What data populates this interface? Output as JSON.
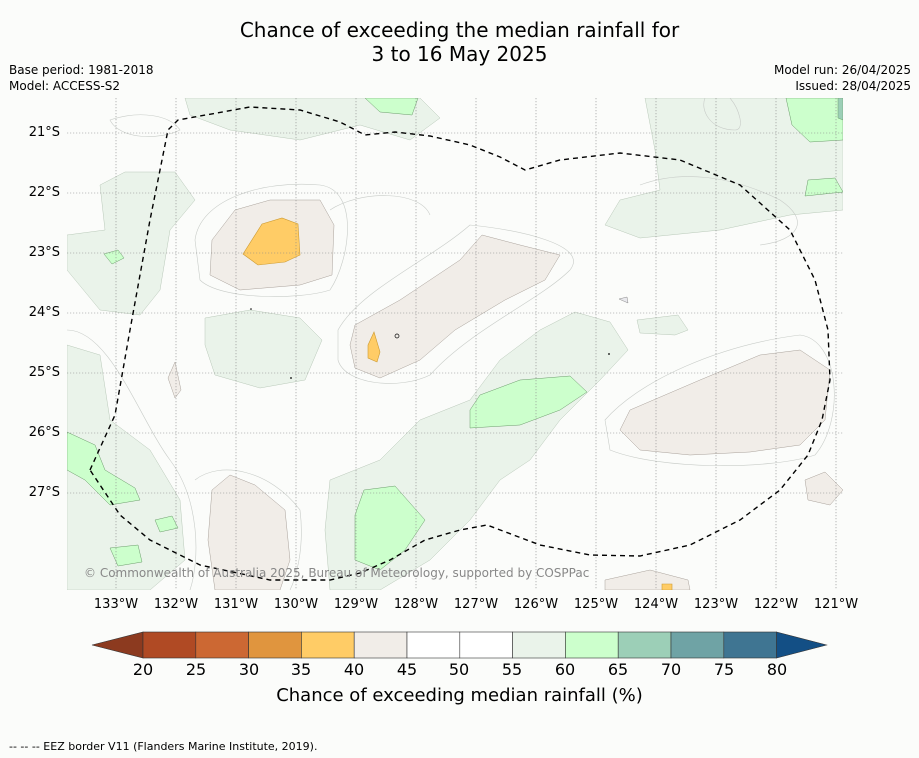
{
  "header": {
    "title_line1": "Chance of exceeding the median rainfall for",
    "title_line2": "3 to 16 May 2025",
    "base_period": "Base period: 1981-2018",
    "model": "Model: ACCESS-S2",
    "model_run": "Model run: 26/04/2025",
    "issued": "Issued: 28/04/2025"
  },
  "map": {
    "copyright": "© Commonwealth of Australia 2025, Bureau of Meteorology, supported by COSPPac",
    "lat_labels": [
      "21°S",
      "22°S",
      "23°S",
      "24°S",
      "25°S",
      "26°S",
      "27°S"
    ],
    "lon_labels": [
      "133°W",
      "132°W",
      "131°W",
      "130°W",
      "129°W",
      "128°W",
      "127°W",
      "126°W",
      "125°W",
      "124°W",
      "123°W",
      "122°W",
      "121°W"
    ],
    "eez_border": "dashed"
  },
  "colorbar": {
    "ticks": [
      "20",
      "25",
      "30",
      "35",
      "40",
      "45",
      "50",
      "55",
      "60",
      "65",
      "70",
      "75",
      "80"
    ],
    "label": "Chance of exceeding median rainfall (%)",
    "colors": [
      "#8c3a1f",
      "#b04a24",
      "#cc6833",
      "#e0953e",
      "#ffcc66",
      "#f1ede8",
      "#ffffff",
      "#ffffff",
      "#eaf3ea",
      "#ccffcc",
      "#9ccfb7",
      "#6fa3a5",
      "#3f7592",
      "#134f85"
    ]
  },
  "footer": {
    "legend": "--  --  -- EEZ border V11 (Flanders Marine Institute, 2019)."
  }
}
